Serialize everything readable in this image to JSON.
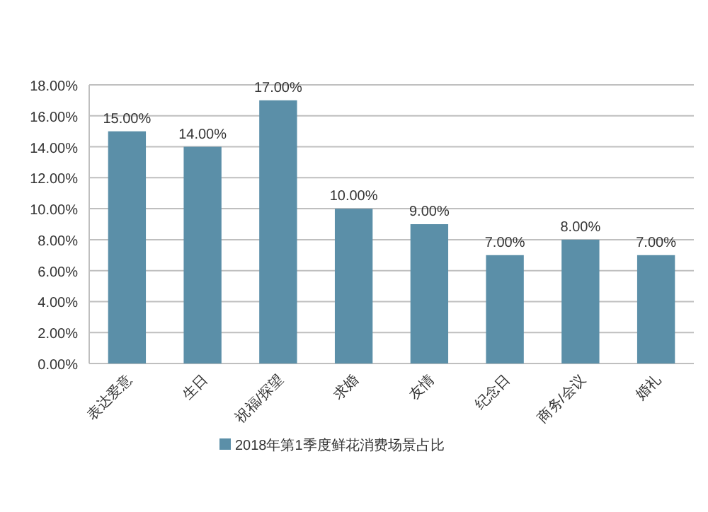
{
  "chart_data": {
    "type": "bar",
    "categories": [
      "表达爱意",
      "生日",
      "祝福/探望",
      "求婚",
      "友情",
      "纪念日",
      "商务/会议",
      "婚礼"
    ],
    "series": [
      {
        "name": "2018年第1季度鲜花消费场景占比",
        "color": "#5b8fa8",
        "values": [
          15,
          14,
          17,
          10,
          9,
          7,
          8,
          7
        ]
      }
    ],
    "value_labels": [
      "15.00%",
      "14.00%",
      "17.00%",
      "10.00%",
      "9.00%",
      "7.00%",
      "8.00%",
      "7.00%"
    ],
    "ylim": [
      0,
      18
    ],
    "yticks": [
      {
        "value": 0,
        "label": "0.00%"
      },
      {
        "value": 2,
        "label": "2.00%"
      },
      {
        "value": 4,
        "label": "4.00%"
      },
      {
        "value": 6,
        "label": "6.00%"
      },
      {
        "value": 8,
        "label": "8.00%"
      },
      {
        "value": 10,
        "label": "10.00%"
      },
      {
        "value": 12,
        "label": "12.00%"
      },
      {
        "value": 14,
        "label": "14.00%"
      },
      {
        "value": 16,
        "label": "16.00%"
      },
      {
        "value": 18,
        "label": "18.00%"
      }
    ],
    "grid": "y",
    "legend": "bottom"
  }
}
